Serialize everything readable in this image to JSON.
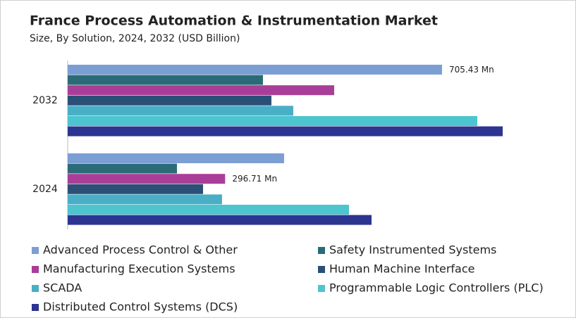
{
  "chart_data": {
    "type": "bar",
    "orientation": "horizontal",
    "title": "France Process Automation & Instrumentation Market",
    "subtitle": "Size, By Solution, 2024, 2032 (USD Billion)",
    "categories": [
      "2032",
      "2024"
    ],
    "series": [
      {
        "name": "Advanced Process Control & Other",
        "color": "#7b9fd4",
        "values": [
          705.43,
          407.8
        ],
        "value_labels": [
          "705.43 Mn",
          null
        ]
      },
      {
        "name": "Safety Instrumented Systems",
        "color": "#2a6b77",
        "values": [
          368.0,
          205.9
        ]
      },
      {
        "name": "Manufacturing Execution Systems",
        "color": "#a93e98",
        "values": [
          502.2,
          296.71
        ],
        "value_labels": [
          null,
          "296.71 Mn"
        ]
      },
      {
        "name": "Human Machine Interface",
        "color": "#2c4f77",
        "values": [
          383.9,
          255.1
        ]
      },
      {
        "name": "SCADA",
        "color": "#4aaec6",
        "values": [
          425.1,
          290.9
        ]
      },
      {
        "name": "Programmable Logic Controllers (PLC)",
        "color": "#4cc5cf",
        "values": [
          771.9,
          530.1
        ]
      },
      {
        "name": "Distributed Control Systems (DCS)",
        "color": "#2c3590",
        "values": [
          819.7,
          572.6
        ]
      }
    ]
  }
}
